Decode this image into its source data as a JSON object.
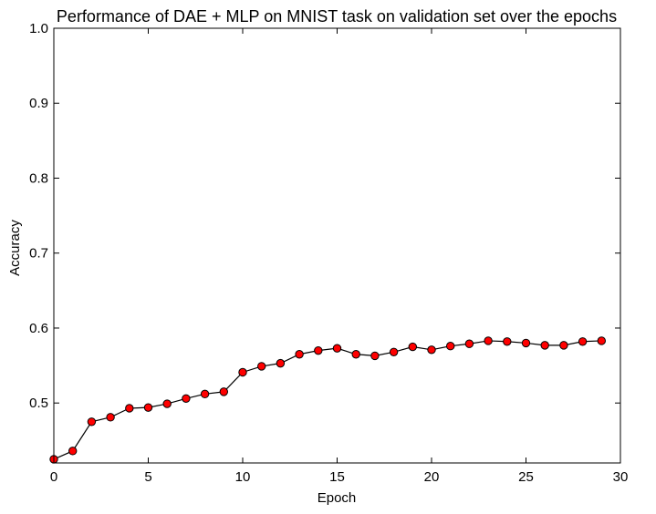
{
  "chart_data": {
    "type": "line",
    "title": "Performance of DAE + MLP on MNIST task on validation set over the epochs",
    "xlabel": "Epoch",
    "ylabel": "Accuracy",
    "xlim": [
      0,
      30
    ],
    "ylim": [
      0.42,
      1.0
    ],
    "xticks": [
      0,
      5,
      10,
      15,
      20,
      25,
      30
    ],
    "yticks": [
      0.5,
      0.6,
      0.7,
      0.8,
      0.9,
      1.0
    ],
    "xtick_labels": [
      "0",
      "5",
      "10",
      "15",
      "20",
      "25",
      "30"
    ],
    "ytick_labels": [
      "0.5",
      "0.6",
      "0.7",
      "0.8",
      "0.9",
      "1.0"
    ],
    "grid": false,
    "series": [
      {
        "line_color": "#000000",
        "marker_color": "#ff0000",
        "x": [
          0,
          1,
          2,
          3,
          4,
          5,
          6,
          7,
          8,
          9,
          10,
          11,
          12,
          13,
          14,
          15,
          16,
          17,
          18,
          19,
          20,
          21,
          22,
          23,
          24,
          25,
          26,
          27,
          28,
          29
        ],
        "y": [
          0.425,
          0.436,
          0.475,
          0.481,
          0.493,
          0.494,
          0.499,
          0.506,
          0.512,
          0.515,
          0.541,
          0.549,
          0.553,
          0.565,
          0.57,
          0.573,
          0.565,
          0.563,
          0.568,
          0.575,
          0.571,
          0.576,
          0.579,
          0.583,
          0.582,
          0.58,
          0.577,
          0.577,
          0.582,
          0.583
        ]
      }
    ]
  }
}
